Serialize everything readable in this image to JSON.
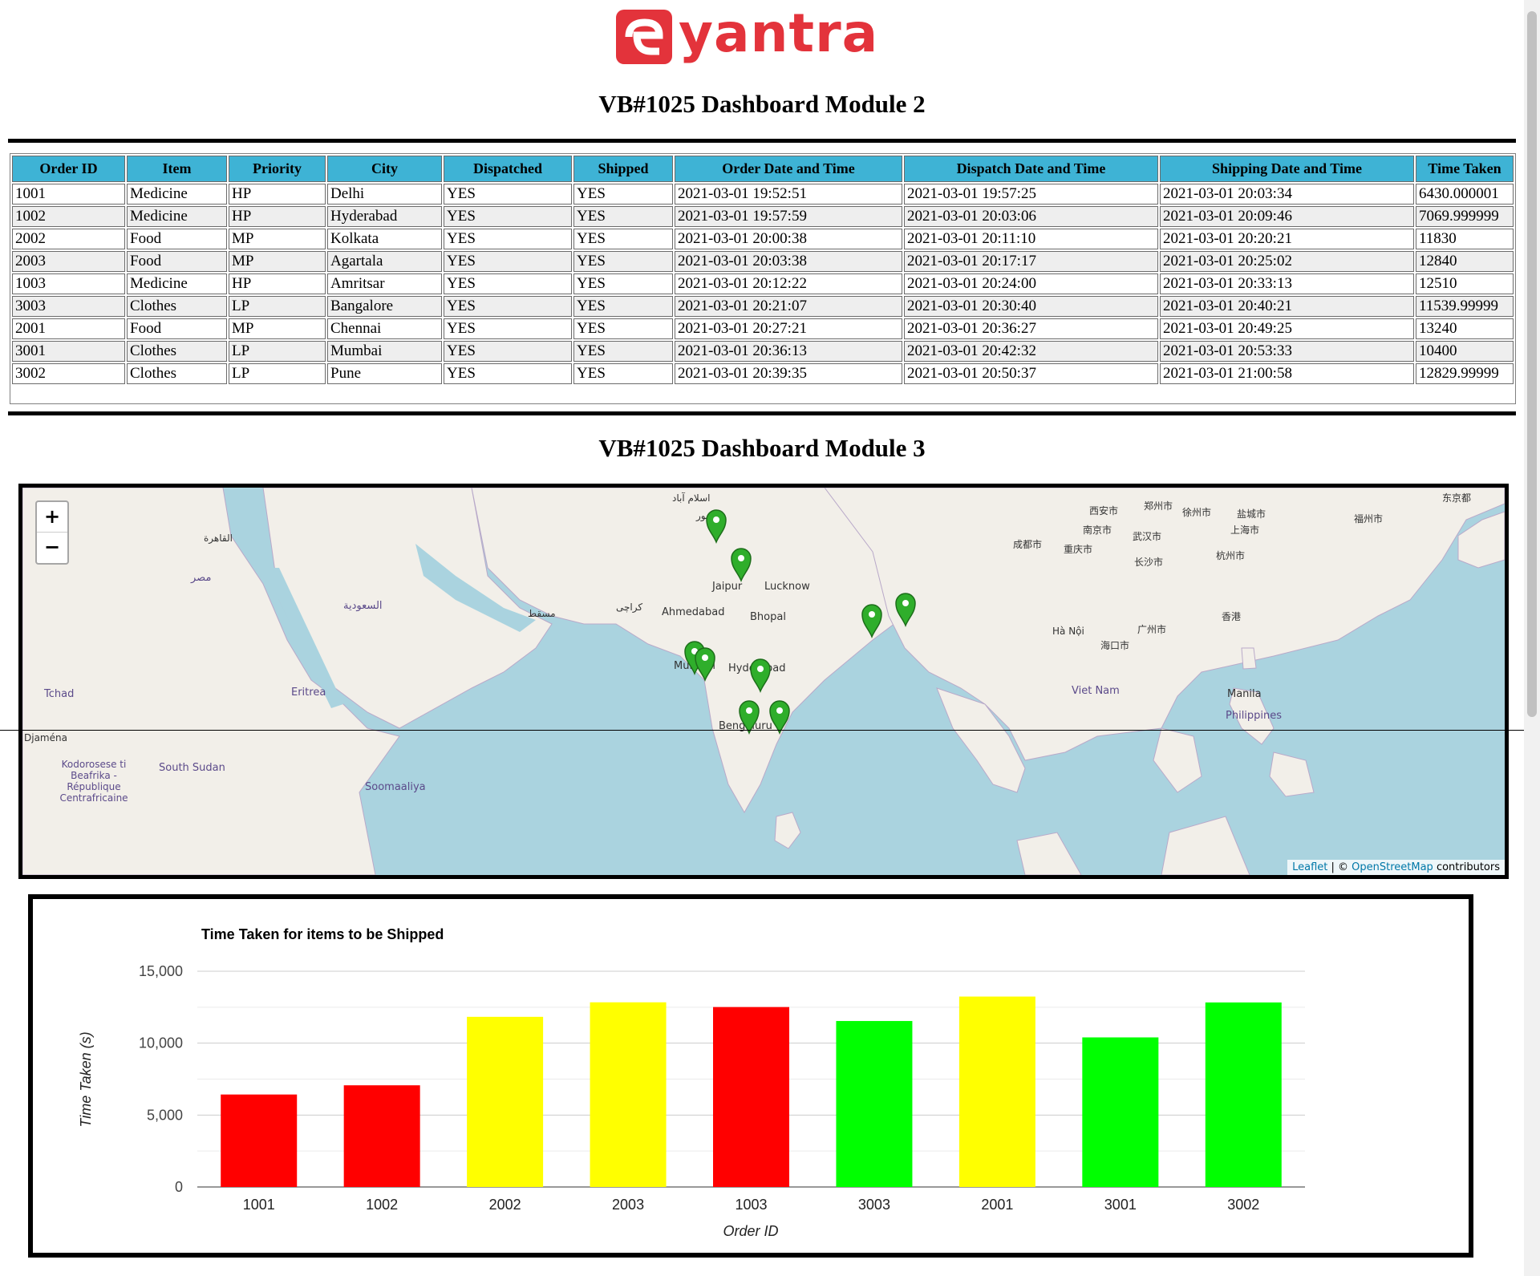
{
  "brand": {
    "logo_text": "eyantra",
    "color": "#e3333b"
  },
  "module2": {
    "heading": "VB#1025 Dashboard Module 2",
    "columns": [
      "Order ID",
      "Item",
      "Priority",
      "City",
      "Dispatched",
      "Shipped",
      "Order Date and Time",
      "Dispatch Date and Time",
      "Shipping Date and Time",
      "Time Taken"
    ],
    "rows": [
      [
        "1001",
        "Medicine",
        "HP",
        "Delhi",
        "YES",
        "YES",
        "2021-03-01 19:52:51",
        "2021-03-01 19:57:25",
        "2021-03-01 20:03:34",
        "6430.000001"
      ],
      [
        "1002",
        "Medicine",
        "HP",
        "Hyderabad",
        "YES",
        "YES",
        "2021-03-01 19:57:59",
        "2021-03-01 20:03:06",
        "2021-03-01 20:09:46",
        "7069.999999"
      ],
      [
        "2002",
        "Food",
        "MP",
        "Kolkata",
        "YES",
        "YES",
        "2021-03-01 20:00:38",
        "2021-03-01 20:11:10",
        "2021-03-01 20:20:21",
        "11830"
      ],
      [
        "2003",
        "Food",
        "MP",
        "Agartala",
        "YES",
        "YES",
        "2021-03-01 20:03:38",
        "2021-03-01 20:17:17",
        "2021-03-01 20:25:02",
        "12840"
      ],
      [
        "1003",
        "Medicine",
        "HP",
        "Amritsar",
        "YES",
        "YES",
        "2021-03-01 20:12:22",
        "2021-03-01 20:24:00",
        "2021-03-01 20:33:13",
        "12510"
      ],
      [
        "3003",
        "Clothes",
        "LP",
        "Bangalore",
        "YES",
        "YES",
        "2021-03-01 20:21:07",
        "2021-03-01 20:30:40",
        "2021-03-01 20:40:21",
        "11539.99999"
      ],
      [
        "2001",
        "Food",
        "MP",
        "Chennai",
        "YES",
        "YES",
        "2021-03-01 20:27:21",
        "2021-03-01 20:36:27",
        "2021-03-01 20:49:25",
        "13240"
      ],
      [
        "3001",
        "Clothes",
        "LP",
        "Mumbai",
        "YES",
        "YES",
        "2021-03-01 20:36:13",
        "2021-03-01 20:42:32",
        "2021-03-01 20:53:33",
        "10400"
      ],
      [
        "3002",
        "Clothes",
        "LP",
        "Pune",
        "YES",
        "YES",
        "2021-03-01 20:39:35",
        "2021-03-01 20:50:37",
        "2021-03-01 21:00:58",
        "12829.99999"
      ]
    ],
    "header_color": "#3eb3d5"
  },
  "module3": {
    "heading": "VB#1025 Dashboard Module 3",
    "map": {
      "zoom_in": "+",
      "zoom_out": "−",
      "attribution_leaflet": "Leaflet",
      "attribution_sep": " | © ",
      "attribution_osm": "OpenStreetMap",
      "attribution_tail": " contributors",
      "marker_color": "#2fae2b",
      "labels": [
        "Jaipur",
        "Lucknow",
        "Ahmedabad",
        "Bhopal",
        "Hyderabad",
        "Mumbai",
        "Bengaluru",
        "Manila",
        "Philippines",
        "Viet Nam",
        "Tchad",
        "Eritrea",
        "South Sudan",
        "Soomaaliya",
        "Kodorosese ti Beafrika - République Centrafricaine",
        "Djaména",
        "西安市",
        "郑州市",
        "徐州市",
        "盐城市",
        "南京市",
        "上海市",
        "成都市",
        "重庆市",
        "武汉市",
        "长沙市",
        "杭州市",
        "福州市",
        "广州市",
        "香港",
        "海口市",
        "Hà Nội",
        "东京都",
        "لاہور",
        "اسلام آباد",
        "مصر",
        "القاهرة",
        "السعودية",
        "مسقط",
        "كراچی"
      ]
    }
  },
  "chart_data": {
    "type": "bar",
    "title": "Time Taken for items to be Shipped",
    "xlabel": "Order ID",
    "ylabel": "Time Taken (s)",
    "categories": [
      "1001",
      "1002",
      "2002",
      "2003",
      "1003",
      "3003",
      "2001",
      "3001",
      "3002"
    ],
    "values": [
      6430.000001,
      7069.999999,
      11830,
      12840,
      12510,
      11539.99999,
      13240,
      10400,
      12829.99999
    ],
    "colors": [
      "#ff0000",
      "#ff0000",
      "#ffff00",
      "#ffff00",
      "#ff0000",
      "#00ff00",
      "#ffff00",
      "#00ff00",
      "#00ff00"
    ],
    "ylim": [
      0,
      15000
    ],
    "yticks": [
      0,
      5000,
      10000,
      15000
    ],
    "ytick_labels": [
      "0",
      "5,000",
      "10,000",
      "15,000"
    ],
    "grid": true,
    "legend": "none"
  }
}
